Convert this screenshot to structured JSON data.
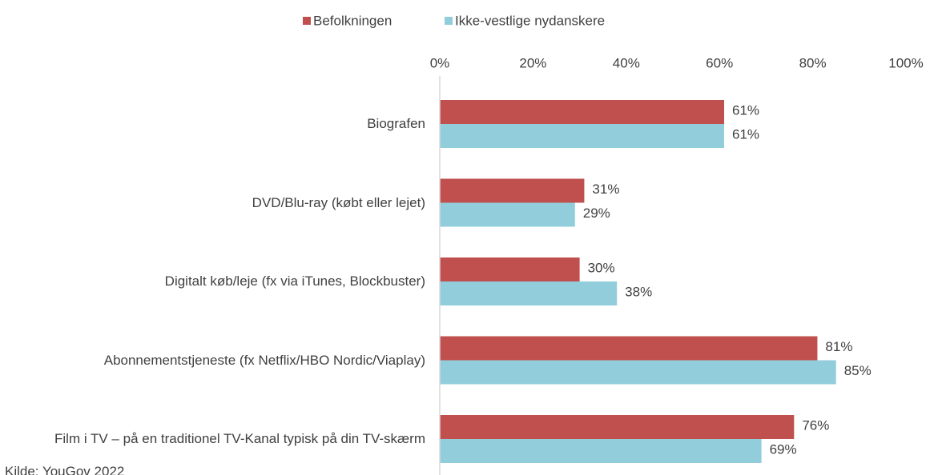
{
  "chart_data": {
    "type": "bar",
    "orientation": "horizontal",
    "categories": [
      "Biografen",
      "DVD/Blu-ray (købt eller lejet)",
      "Digitalt køb/leje (fx via iTunes, Blockbuster)",
      "Abonnementstjeneste (fx Netflix/HBO Nordic/Viaplay)",
      "Film i TV – på en traditionel TV-Kanal typisk på din TV-skærm"
    ],
    "series": [
      {
        "name": "Befolkningen",
        "color": "#c0504d",
        "values": [
          61,
          31,
          30,
          81,
          76
        ],
        "value_labels": [
          "61%",
          "31%",
          "30%",
          "81%",
          "76%"
        ]
      },
      {
        "name": "Ikke-vestlige nydanskere",
        "color": "#92cddc",
        "values": [
          61,
          29,
          38,
          85,
          69
        ],
        "value_labels": [
          "61%",
          "29%",
          "38%",
          "85%",
          "69%"
        ]
      }
    ],
    "xlim": [
      0,
      100
    ],
    "xticks": [
      {
        "value": 0,
        "label": "0%"
      },
      {
        "value": 20,
        "label": "20%"
      },
      {
        "value": 40,
        "label": "40%"
      },
      {
        "value": 60,
        "label": "60%"
      },
      {
        "value": 80,
        "label": "80%"
      },
      {
        "value": 100,
        "label": "100%"
      }
    ],
    "grid": false,
    "legend": "top",
    "source": "Kilde: YouGov 2022"
  }
}
